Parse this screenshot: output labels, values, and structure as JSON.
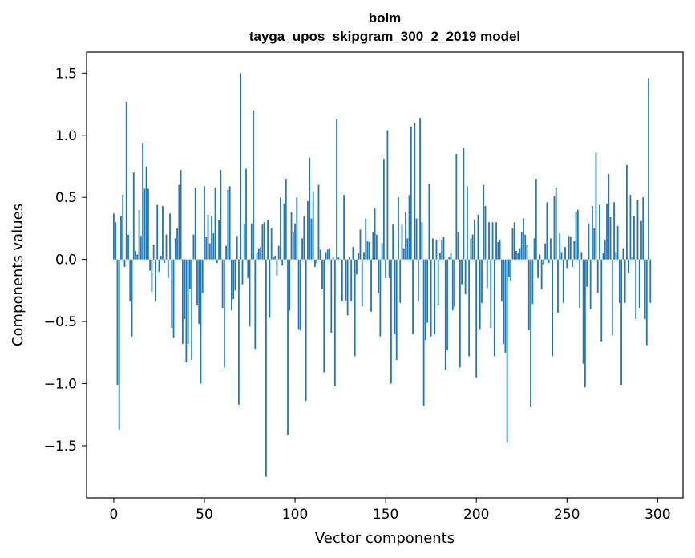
{
  "chart_data": {
    "type": "bar",
    "title": "bolm",
    "subtitle": "tayga_upos_skipgram_300_2_2019 model",
    "xlabel": "Vector components",
    "ylabel": "Components values",
    "xlim": [
      -15,
      314
    ],
    "ylim": [
      -1.92,
      1.67
    ],
    "xticks": [
      0,
      50,
      100,
      150,
      200,
      250,
      300
    ],
    "xtick_labels": [
      "0",
      "50",
      "100",
      "150",
      "200",
      "250",
      "300"
    ],
    "yticks": [
      1.5,
      1.0,
      0.5,
      0.0,
      -0.5,
      -1.0,
      -1.5
    ],
    "ytick_labels": [
      "1.5",
      "1.0",
      "0.5",
      "0.0",
      "−0.5",
      "−1.0",
      "−1.5"
    ],
    "bar_color": "#1f77b4",
    "grid": false,
    "x": "indices 0..299",
    "values": [
      0.37,
      0.3,
      -1.01,
      -1.37,
      0.35,
      0.52,
      -0.06,
      1.27,
      0.2,
      -0.34,
      -0.62,
      0.7,
      0.07,
      0.04,
      0.4,
      0.19,
      0.94,
      0.57,
      0.75,
      0.57,
      -0.09,
      -0.26,
      0.12,
      -0.34,
      0.44,
      -0.1,
      0.03,
      0.43,
      -0.03,
      0.2,
      -0.15,
      0.37,
      -0.55,
      -0.63,
      0.17,
      0.25,
      0.6,
      0.72,
      -0.68,
      -0.48,
      -0.83,
      -0.68,
      -0.24,
      -0.81,
      0.2,
      0.58,
      -0.37,
      -0.52,
      -1.0,
      -0.27,
      0.59,
      0.18,
      0.36,
      0.13,
      0.35,
      0.21,
      0.58,
      -0.03,
      0.32,
      0.72,
      -0.39,
      -0.87,
      0.11,
      0.56,
      0.59,
      -0.41,
      -0.32,
      -0.25,
      0.19,
      -1.17,
      1.5,
      -0.2,
      0.29,
      0.73,
      -0.15,
      -0.54,
      0.29,
      1.2,
      -0.72,
      0.05,
      0.09,
      0.1,
      0.28,
      0.3,
      -1.75,
      0.32,
      -0.47,
      0.25,
      0.02,
      0.03,
      -0.13,
      0.11,
      0.5,
      -0.05,
      0.45,
      0.65,
      -1.41,
      -0.41,
      0.38,
      0.22,
      0.29,
      0.5,
      -0.56,
      -0.57,
      0.17,
      0.35,
      -1.14,
      0.47,
      0.82,
      0.33,
      0.55,
      -0.06,
      -0.03,
      0.6,
      0.08,
      -0.24,
      -0.91,
      0.06,
      0.08,
      0.09,
      -0.59,
      0.02,
      -1.02,
      1.13,
      0.02,
      0.0,
      -0.34,
      0.52,
      -0.33,
      -0.45,
      0.02,
      -0.34,
      0.1,
      -0.78,
      -0.12,
      0.05,
      0.24,
      -0.38,
      0.06,
      0.33,
      0.15,
      0.14,
      -0.42,
      0.22,
      0.41,
      0.2,
      -0.27,
      -0.62,
      0.13,
      0.81,
      -0.15,
      1.04,
      -0.15,
      -1.0,
      0.28,
      -0.6,
      -0.81,
      0.5,
      -0.35,
      0.28,
      0.09,
      0.38,
      0.17,
      0.52,
      1.07,
      -0.6,
      1.1,
      0.33,
      -0.34,
      1.14,
      0.3,
      -1.18,
      -0.65,
      -0.51,
      0.61,
      -0.62,
      0.17,
      -0.6,
      0.16,
      -0.37,
      0.05,
      0.16,
      0.18,
      -0.89,
      -0.73,
      0.02,
      0.05,
      -0.41,
      -0.38,
      0.85,
      0.22,
      -0.87,
      -0.2,
      0.9,
      -0.28,
      0.59,
      -0.78,
      0.17,
      0.2,
      0.32,
      -0.95,
      0.36,
      -0.56,
      -0.35,
      0.6,
      0.43,
      -0.23,
      0.3,
      -0.55,
      0.3,
      -0.78,
      0.3,
      0.14,
      0.16,
      -0.34,
      -0.68,
      -0.75,
      -1.47,
      -0.14,
      -0.17,
      0.25,
      0.3,
      0.07,
      0.05,
      0.09,
      0.22,
      0.33,
      0.2,
      0.12,
      -0.57,
      -1.19,
      -0.36,
      0.17,
      0.65,
      -0.15,
      0.04,
      -0.24,
      -0.04,
      0.13,
      0.46,
      -0.03,
      0.17,
      -0.78,
      0.51,
      0.58,
      -0.43,
      0.21,
      0.06,
      -0.35,
      0.1,
      -0.07,
      0.19,
      0.18,
      -0.06,
      0.15,
      0.38,
      0.4,
      -0.39,
      0.06,
      -0.84,
      -1.03,
      -0.22,
      0.29,
      -0.4,
      0.43,
      0.25,
      0.86,
      -0.27,
      0.44,
      -0.66,
      0.05,
      0.16,
      0.45,
      0.69,
      0.34,
      -0.61,
      0.46,
      0.06,
      0.27,
      -0.35,
      -1.01,
      0.09,
      -0.35,
      0.76,
      -0.11,
      0.52,
      0.02,
      0.35,
      -0.48,
      0.48,
      -0.39,
      0.31,
      0.5,
      -0.48,
      -0.69,
      1.46,
      -0.35
    ]
  }
}
